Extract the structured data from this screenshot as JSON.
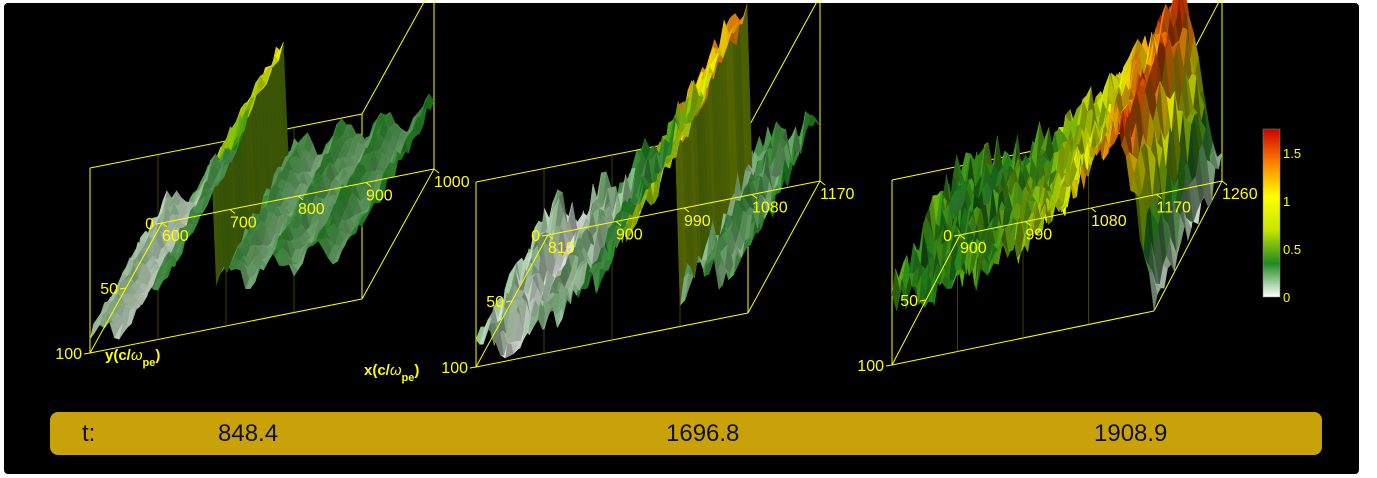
{
  "chart_data": [
    {
      "type": "surface",
      "time": "848.4",
      "xlabel": "x(c/ω_pe)",
      "ylabel": "y(c/ω_pe)",
      "x_ticks": [
        "600",
        "700",
        "800",
        "900",
        "1000"
      ],
      "y_ticks": [
        "0",
        "50",
        "100"
      ],
      "xlim": [
        600,
        1000
      ],
      "ylim": [
        0,
        100
      ],
      "surface": {
        "profile": "front-tail",
        "front_x": 785,
        "peak": 1.25,
        "noise": 0.05
      }
    },
    {
      "type": "surface",
      "time": "1696.8",
      "x_ticks": [
        "810",
        "900",
        "990",
        "1080",
        "1170"
      ],
      "y_ticks": [
        "0",
        "50",
        "100"
      ],
      "xlim": [
        810,
        1170
      ],
      "ylim": [
        0,
        100
      ],
      "surface": {
        "profile": "front-tail",
        "front_x": 1075,
        "peak": 1.4,
        "noise": 0.12
      }
    },
    {
      "type": "surface",
      "time": "1908.9",
      "x_ticks": [
        "900",
        "990",
        "1080",
        "1170",
        "1260"
      ],
      "y_ticks": [
        "0",
        "50",
        "100"
      ],
      "xlim": [
        900,
        1260
      ],
      "ylim": [
        0,
        100
      ],
      "surface": {
        "profile": "rising-noisy",
        "front_x": 1210,
        "peak": 1.6,
        "noise": 0.18
      }
    }
  ],
  "colorbar": {
    "ticks": [
      "0",
      "0.5",
      "1",
      "1.5"
    ],
    "tick_values": [
      0,
      0.5,
      1,
      1.5
    ],
    "range": [
      0,
      1.75
    ],
    "colors": [
      "#ffffff",
      "#1f8a1f",
      "#c8e600",
      "#ffff00",
      "#ff8000",
      "#cc0000"
    ]
  },
  "time_bar": {
    "label": "t:",
    "values": [
      "848.4",
      "1696.8",
      "1908.9"
    ]
  },
  "colors": {
    "axis": "#ffff00",
    "tick_label": "#ffff00",
    "background": "#000000",
    "time_bar": "#c9a20a"
  }
}
